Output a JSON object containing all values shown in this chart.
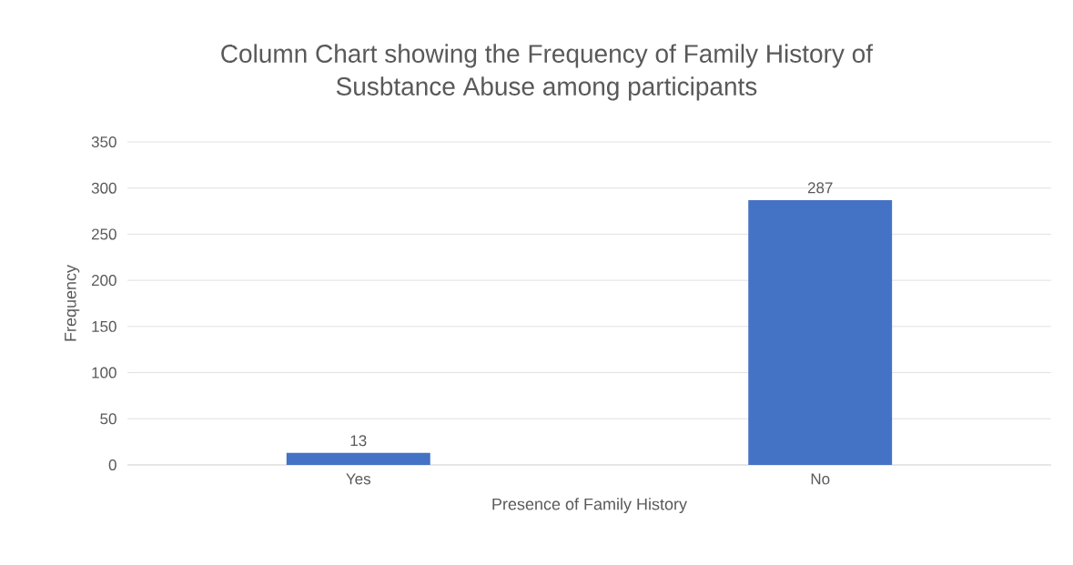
{
  "chart_data": {
    "type": "bar",
    "title": "Column Chart showing the Frequency of Family History of Susbtance Abuse among participants",
    "xlabel": "Presence of Family History",
    "ylabel": "Frequency",
    "categories": [
      "Yes",
      "No"
    ],
    "values": [
      13,
      287
    ],
    "color": "#4472c4",
    "ylim": [
      0,
      350
    ],
    "yticks": [
      0,
      50,
      100,
      150,
      200,
      250,
      300,
      350
    ],
    "grid": "y",
    "data_labels": true
  }
}
